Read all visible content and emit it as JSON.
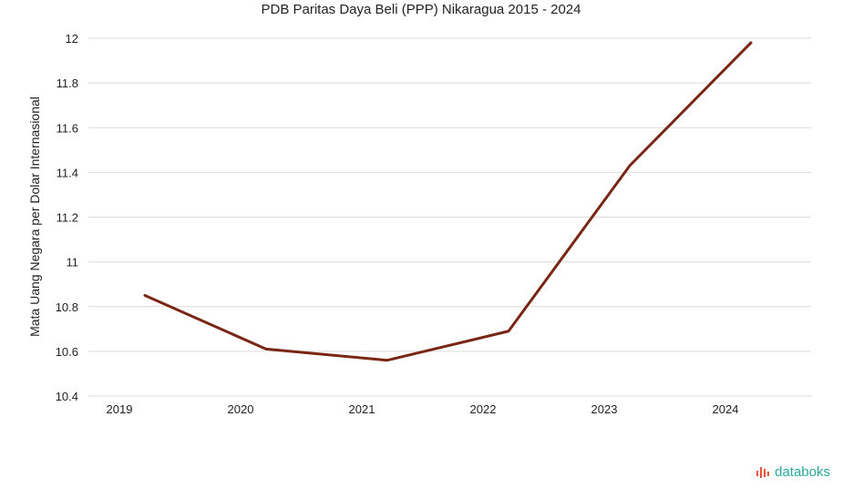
{
  "chart_data": {
    "type": "line",
    "title": "PDB Paritas Daya Beli (PPP) Nikaragua 2015 - 2024",
    "xlabel": "",
    "ylabel": "Mata Uang Negara per Dolar Internasional",
    "categories": [
      "2019",
      "2020",
      "2021",
      "2022",
      "2023",
      "2024"
    ],
    "series": [
      {
        "values": [
          10.85,
          10.61,
          10.56,
          10.69,
          11.43,
          11.98
        ]
      }
    ],
    "ylim": [
      10.4,
      12
    ],
    "yticks": [
      10.4,
      10.6,
      10.8,
      11,
      11.2,
      11.4,
      11.6,
      11.8,
      12
    ],
    "ytick_labels": [
      "10.4",
      "10.6",
      "10.8",
      "11",
      "11.2",
      "11.4",
      "11.6",
      "11.8",
      "12"
    ],
    "grid": true,
    "legend": "none"
  },
  "colors": {
    "line": "#7a2614",
    "grid": "#dcdcdc",
    "brand": "#2aa8a0",
    "brand_icon": "#e8563f"
  },
  "brand": {
    "name": "databoks",
    "icon": "databoks-logo-icon"
  }
}
